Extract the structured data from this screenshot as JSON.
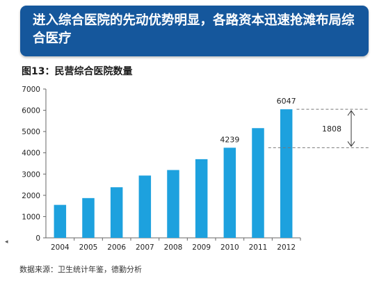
{
  "header": {
    "title": "进入综合医院的先动优势明显，各路资本迅速抢滩布局综合医疗"
  },
  "figure": {
    "caption": "图13：民营综合医院数量",
    "source": "数据来源：卫生统计年鉴，德勤分析",
    "left_marker": "◂"
  },
  "chart_data": {
    "type": "bar",
    "categories": [
      "2004",
      "2005",
      "2006",
      "2007",
      "2008",
      "2009",
      "2010",
      "2011",
      "2012"
    ],
    "values": [
      1550,
      1870,
      2380,
      2930,
      3190,
      3700,
      4239,
      5160,
      6047
    ],
    "value_labels": {
      "2010": "4239",
      "2012": "6047"
    },
    "ylim": [
      0,
      7000
    ],
    "yticks": [
      0,
      1000,
      2000,
      3000,
      4000,
      5000,
      6000,
      7000
    ],
    "bar_color": "#1da1de",
    "grid": false,
    "xlabel": "",
    "ylabel": "",
    "title": "",
    "annotation": {
      "text": "1808",
      "from": 4239,
      "to": 6047
    }
  },
  "colors": {
    "banner": "#15579c",
    "bar": "#1da1de"
  }
}
